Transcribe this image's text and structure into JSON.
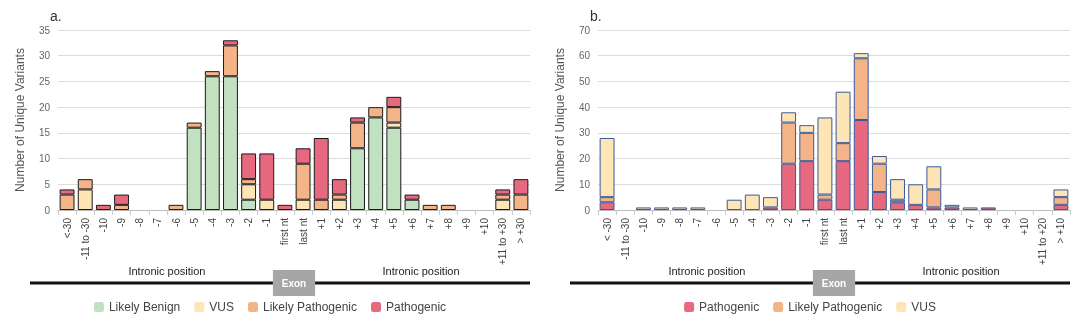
{
  "chart_data": [
    {
      "type": "bar",
      "title": "a.",
      "ylabel": "Number of Unique Variants",
      "stacked": true,
      "grid": "y",
      "legend": "bottom",
      "ylim": [
        0,
        35
      ],
      "yticks": [
        0,
        5,
        10,
        15,
        20,
        25,
        30,
        35
      ],
      "categories": [
        "<-30",
        "-11 to -30",
        "-10",
        "-9",
        "-8",
        "-7",
        "-6",
        "-5",
        "-4",
        "-3",
        "-2",
        "-1",
        "first nt",
        "last nt",
        "+1",
        "+2",
        "+3",
        "+4",
        "+5",
        "+6",
        "+7",
        "+8",
        "+9",
        "+10",
        "+11 to +30",
        "> +30"
      ],
      "annotations": [
        "Intronic position",
        "Exon",
        "Intronic position"
      ],
      "series": [
        {
          "name": "Likely Benign",
          "color": "#c1e1c1",
          "values": [
            0,
            0,
            0,
            0,
            0,
            0,
            0,
            16,
            26,
            26,
            2,
            0,
            0,
            0,
            0,
            0,
            12,
            18,
            16,
            2,
            0,
            0,
            0,
            0,
            0,
            0
          ]
        },
        {
          "name": "VUS",
          "color": "#fde5b6",
          "values": [
            0,
            4,
            0,
            0,
            0,
            0,
            0,
            0,
            0,
            0,
            3,
            2,
            0,
            2,
            0,
            2,
            0,
            0,
            1,
            0,
            0,
            0,
            0,
            0,
            2,
            0
          ]
        },
        {
          "name": "Likely Pathogenic",
          "color": "#f4b488",
          "values": [
            3,
            2,
            0,
            1,
            0,
            0,
            1,
            1,
            1,
            6,
            1,
            0,
            0,
            7,
            2,
            1,
            5,
            2,
            3,
            0,
            1,
            1,
            0,
            0,
            1,
            3
          ]
        },
        {
          "name": "Pathogenic",
          "color": "#e6697f",
          "values": [
            1,
            0,
            1,
            2,
            0,
            0,
            0,
            0,
            0,
            1,
            5,
            9,
            1,
            3,
            12,
            3,
            1,
            0,
            2,
            1,
            0,
            0,
            0,
            0,
            1,
            3
          ]
        }
      ]
    },
    {
      "type": "bar",
      "title": "b.",
      "ylabel": "Number of Unique Variants",
      "stacked": true,
      "grid": "y",
      "legend": "bottom",
      "ylim": [
        0,
        70
      ],
      "yticks": [
        0,
        10,
        20,
        30,
        40,
        50,
        60,
        70
      ],
      "categories": [
        "< -30",
        "-11 to -30",
        "-10",
        "-9",
        "-8",
        "-7",
        "-6",
        "-5",
        "-4",
        "-3",
        "-2",
        "-1",
        "first nt",
        "last nt",
        "+1",
        "+2",
        "+3",
        "+4",
        "+5",
        "+6",
        "+7",
        "+8",
        "+9",
        "+10",
        "+11 to +20",
        "> +10"
      ],
      "annotations": [
        "Intronic position",
        "Exon",
        "Intronic position"
      ],
      "series": [
        {
          "name": "Pathogenic",
          "color": "#e6697f",
          "values": [
            3,
            0,
            0,
            0,
            0,
            0,
            0,
            0,
            0,
            1,
            18,
            19,
            4,
            19,
            35,
            7,
            3,
            2,
            1,
            1,
            0,
            1,
            0,
            0,
            0,
            2
          ]
        },
        {
          "name": "Likely Pathogenic",
          "color": "#f4b488",
          "values": [
            2,
            0,
            0,
            0,
            0,
            0,
            0,
            0,
            0,
            0,
            16,
            11,
            2,
            7,
            24,
            11,
            1,
            0,
            7,
            0,
            0,
            0,
            0,
            0,
            0,
            3
          ]
        },
        {
          "name": "VUS",
          "color": "#fde5b6",
          "values": [
            23,
            0,
            1,
            1,
            1,
            1,
            0,
            4,
            6,
            4,
            4,
            3,
            30,
            20,
            2,
            3,
            8,
            8,
            9,
            1,
            1,
            0,
            0,
            0,
            0,
            3
          ]
        }
      ]
    }
  ]
}
